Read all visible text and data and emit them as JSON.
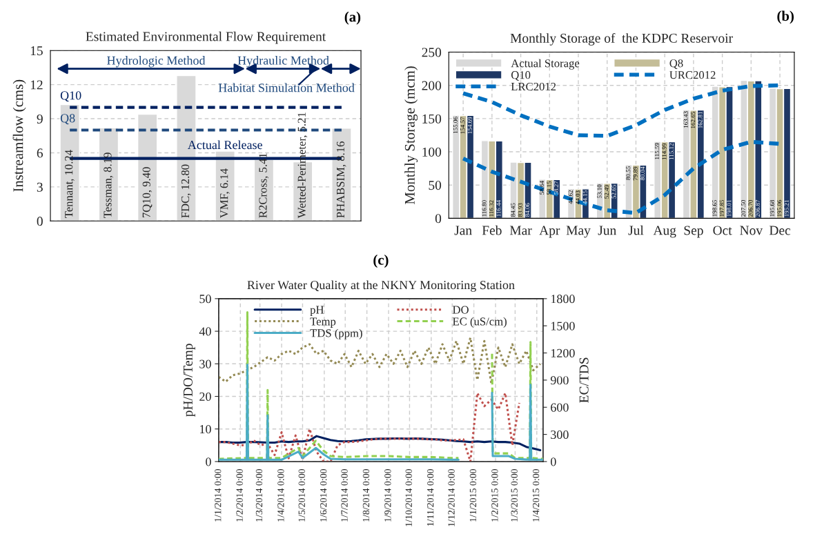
{
  "chart_data": [
    {
      "type": "bar",
      "title": "Estimated Environmental Flow Requirement",
      "ylabel": "Instreamflow (cms)",
      "categories": [
        "Tennant, 10.24",
        "Tessman, 8.19",
        "7Q10, 9.40",
        "FDC, 12.80",
        "VMF, 6.14",
        "R2Cross, 5.41",
        "Wetted-Perimeter, 5.21",
        "PHABSIM, 8.16"
      ],
      "series": [
        {
          "color": "#d9d9d9",
          "values": [
            10.24,
            8.19,
            9.4,
            12.8,
            6.14,
            5.41,
            5.21,
            8.16
          ]
        }
      ],
      "ylim": [
        0,
        15
      ],
      "yticks": [
        0,
        3,
        6,
        9,
        12,
        15
      ],
      "grid": true,
      "tick_labels": "y",
      "ref_lines": [
        {
          "axis": "y",
          "value": 10,
          "label": "Q10",
          "color": "#002060",
          "line_style": "dashed"
        },
        {
          "axis": "y",
          "value": 8,
          "label": "Q8",
          "color": "#1f497d",
          "line_style": "dashed"
        },
        {
          "axis": "y",
          "value": 5.5,
          "label": "Actual Release",
          "color": "#002060",
          "line_style": "solid"
        }
      ],
      "annotations": [
        "(a)",
        "Hydrologic Method",
        "Hydraulic Method",
        "Habitat Simulation Method"
      ]
    },
    {
      "type": "bar",
      "title": "Monthly Storage of  the KDPC Reservoir",
      "ylabel": "Monthly Storage (mcm)",
      "categories": [
        "Jan",
        "Feb",
        "Mar",
        "Apr",
        "May",
        "Jun",
        "Jul",
        "Aug",
        "Sep",
        "Oct",
        "Nov",
        "Dec"
      ],
      "series": [
        {
          "name": "Actual Storage",
          "color": "#d9d9d9",
          "values": [
            155.06,
            116.8,
            84.45,
            58.64,
            44.62,
            53.1,
            80.55,
            115.59,
            163.43,
            198.65,
            207.5,
            195.68
          ],
          "value_labels": [
            "155.06",
            "116.80",
            "84.45",
            "58.64",
            "44.62",
            "53.10",
            "80.55",
            "115.59",
            "163.43",
            "198.65",
            "207.50",
            "195.68"
          ]
        },
        {
          "name": "Q8",
          "color": "#c4bd97",
          "values": [
            154.57,
            116.32,
            83.93,
            58.15,
            44.03,
            52.49,
            79.89,
            114.99,
            162.65,
            197.85,
            206.7,
            195.06
          ],
          "value_labels": [
            "154.57",
            "116.32",
            "83.93",
            "58.15",
            "44.03",
            "52.49",
            "79.89",
            "114.99",
            "162.65",
            "197.85",
            "206.70",
            "195.06"
          ]
        },
        {
          "name": "Q10",
          "color": "#1f3864",
          "values": [
            154.69,
            116.44,
            84.06,
            58.27,
            44.15,
            52.65,
            80.04,
            115.12,
            162.81,
            198.01,
            206.87,
            195.21
          ],
          "value_labels": [
            "154.69",
            "116.44",
            "84.06",
            "58.27",
            "44.15",
            "52.65",
            "80.04",
            "115.12",
            "162.81",
            "198.01",
            "206.87",
            "195.21"
          ]
        },
        {
          "name": "URC2012",
          "type": "line",
          "color": "#0070c0",
          "line_style": "dashed",
          "values": [
            188,
            175,
            155,
            138,
            125,
            124,
            140,
            163,
            180,
            192,
            199,
            200
          ]
        },
        {
          "name": "LRC2012",
          "type": "line",
          "color": "#0070c0",
          "line_style": "dashed",
          "values": [
            90,
            70,
            55,
            40,
            25,
            12,
            8,
            35,
            75,
            103,
            115,
            112
          ]
        }
      ],
      "ylim": [
        0,
        250
      ],
      "yticks": [
        0,
        50,
        100,
        150,
        200,
        250
      ],
      "grid": true,
      "legend": "top left",
      "annotations": [
        "(b)"
      ]
    },
    {
      "type": "line",
      "title": "River Water Quality at the NKNY Monitoring Station",
      "ylabel": "pH/DO/Temp",
      "y2label": "EC/TDS",
      "x": [
        "2014-01-01",
        "2014-01-11",
        "2014-01-21",
        "2014-01-31",
        "2014-02-10",
        "2014-02-20",
        "2014-03-02",
        "2014-03-12",
        "2014-03-22",
        "2014-04-01",
        "2014-04-11",
        "2014-04-21",
        "2014-05-01",
        "2014-05-11",
        "2014-05-21",
        "2014-05-31",
        "2014-06-10",
        "2014-06-20",
        "2014-06-30",
        "2014-07-10",
        "2014-07-20",
        "2014-07-30",
        "2014-08-09",
        "2014-08-19",
        "2014-08-29",
        "2014-09-08",
        "2014-09-18",
        "2014-09-28",
        "2014-10-08",
        "2014-10-18",
        "2014-10-28",
        "2014-11-07",
        "2014-11-17",
        "2014-11-27",
        "2014-12-07",
        "2014-12-17",
        "2014-12-27",
        "2015-01-06",
        "2015-01-16",
        "2015-01-26",
        "2015-02-05",
        "2015-02-15",
        "2015-02-25",
        "2015-03-07",
        "2015-03-17",
        "2015-03-27",
        "2015-04-06"
      ],
      "series": [
        {
          "name": "pH",
          "color": "#002060",
          "line_style": "solid",
          "values": [
            6,
            6,
            5.8,
            5.8,
            6,
            6,
            5.9,
            5.8,
            5.8,
            6.2,
            6.0,
            6.2,
            6.2,
            6.5,
            7.8,
            7.2,
            6.6,
            6.3,
            6.2,
            6.3,
            6.5,
            6.8,
            6.9,
            7.0,
            7.0,
            7.1,
            7.1,
            7.0,
            7.1,
            7.0,
            6.9,
            6.8,
            6.7,
            6.5,
            6.3,
            6.2,
            6.0,
            6.2,
            6.0,
            6.2,
            6.0,
            6.0,
            5.8,
            5.5,
            4.5,
            4.0,
            3.5
          ]
        },
        {
          "name": "DO",
          "color": "#c0504d",
          "line_style": "dotted",
          "values": [
            6,
            6,
            5.5,
            5,
            5,
            6.5,
            5,
            5.5,
            2,
            9,
            1,
            8,
            0.5,
            10,
            3,
            0,
            0,
            5,
            6,
            6,
            6.2,
            6.5,
            6.8,
            7,
            7,
            7,
            7,
            7,
            7,
            7,
            6.8,
            6.8,
            6.5,
            6.5,
            6.6,
            6.8,
            0,
            21,
            17,
            19,
            16,
            21,
            5,
            18,
            null,
            null,
            null
          ]
        },
        {
          "name": "Temp",
          "color": "#948a54",
          "line_style": "dotted",
          "values": [
            26,
            24.5,
            26.5,
            27,
            28,
            29,
            30.5,
            32,
            31,
            33,
            34,
            33,
            35,
            36,
            33,
            34,
            31,
            30,
            33,
            29,
            34,
            30,
            33,
            29,
            33,
            30,
            34,
            29,
            34,
            30,
            35,
            30,
            36,
            31,
            37,
            30,
            38,
            25,
            37,
            24,
            35,
            29,
            36,
            30,
            34,
            28,
            30
          ]
        },
        {
          "name": "EC (uS/cm)",
          "color": "#92d050",
          "line_style": "dashed",
          "axis": "y2",
          "x": [
            "2014-01-01",
            "2014-02-10",
            "2014-02-11",
            "2014-02-12",
            "2014-03-11",
            "2014-03-12",
            "2014-03-13",
            "2014-04-01",
            "2014-04-25",
            "2014-05-01",
            "2014-05-20",
            "2014-05-31",
            "2014-06-10",
            "2014-07-01",
            "2014-08-01",
            "2014-09-01",
            "2014-10-01",
            "2014-11-01",
            "2014-12-01",
            "2014-12-10",
            "2014-12-11",
            "2015-01-26",
            "2015-01-27",
            "2015-01-28",
            "2015-02-20",
            "2015-03-01",
            "2015-03-22",
            "2015-03-23",
            "2015-03-24",
            "2015-04-10"
          ],
          "values": [
            30,
            40,
            1650,
            40,
            40,
            790,
            40,
            40,
            150,
            60,
            230,
            120,
            60,
            50,
            60,
            60,
            50,
            50,
            40,
            40,
            null,
            null,
            1190,
            90,
            90,
            40,
            40,
            1320,
            40,
            30
          ]
        },
        {
          "name": "TDS (ppm)",
          "color": "#4bacc6",
          "line_style": "solid",
          "axis": "y2",
          "x": [
            "2014-01-01",
            "2014-02-10",
            "2014-02-11",
            "2014-02-12",
            "2014-03-11",
            "2014-03-12",
            "2014-03-13",
            "2014-04-01",
            "2014-04-25",
            "2014-05-01",
            "2014-05-20",
            "2014-05-31",
            "2014-06-10",
            "2014-07-01",
            "2014-08-01",
            "2014-09-01",
            "2014-10-01",
            "2014-11-01",
            "2014-12-01",
            "2014-12-10",
            "2014-12-11",
            "2015-01-26",
            "2015-01-27",
            "2015-01-28",
            "2015-02-20",
            "2015-03-01",
            "2015-03-22",
            "2015-03-23",
            "2015-03-24",
            "2015-04-10"
          ],
          "values": [
            20,
            20,
            1070,
            20,
            20,
            510,
            20,
            20,
            110,
            40,
            150,
            80,
            30,
            25,
            25,
            25,
            25,
            25,
            20,
            20,
            null,
            null,
            760,
            60,
            60,
            30,
            20,
            850,
            20,
            20
          ]
        }
      ],
      "xlim": [
        "2014-01-01",
        "2015-04-10"
      ],
      "xticks": [
        {
          "value": "2014-01-01",
          "label": "1/1/2014 0:00"
        },
        {
          "value": "2014-02-01",
          "label": "1/2/2014 0:00"
        },
        {
          "value": "2014-03-01",
          "label": "1/3/2014 0:00"
        },
        {
          "value": "2014-04-01",
          "label": "1/4/2014 0:00"
        },
        {
          "value": "2014-05-01",
          "label": "1/5/2014 0:00"
        },
        {
          "value": "2014-06-01",
          "label": "1/6/2014 0:00"
        },
        {
          "value": "2014-07-01",
          "label": "1/7/2014 0:00"
        },
        {
          "value": "2014-08-01",
          "label": "1/8/2014 0:00"
        },
        {
          "value": "2014-09-01",
          "label": "1/9/2014 0:00"
        },
        {
          "value": "2014-10-01",
          "label": "1/10/2014 0:00"
        },
        {
          "value": "2014-11-01",
          "label": "1/11/2014 0:00"
        },
        {
          "value": "2014-12-01",
          "label": "1/12/2014 0:00"
        },
        {
          "value": "2015-01-01",
          "label": "1/1/2015 0:00"
        },
        {
          "value": "2015-02-01",
          "label": "1/2/2015 0:00"
        },
        {
          "value": "2015-03-01",
          "label": "1/3/2015 0:00"
        },
        {
          "value": "2015-04-01",
          "label": "1/4/2015 0:00"
        }
      ],
      "ylim": [
        0,
        50
      ],
      "yticks": [
        0,
        10,
        20,
        30,
        40,
        50
      ],
      "y2lim": [
        0,
        1800
      ],
      "y2ticks": [
        0,
        300,
        600,
        900,
        1200,
        1500,
        1800
      ],
      "grid": true,
      "legend": "top",
      "annotations": [
        "(c)"
      ]
    }
  ]
}
